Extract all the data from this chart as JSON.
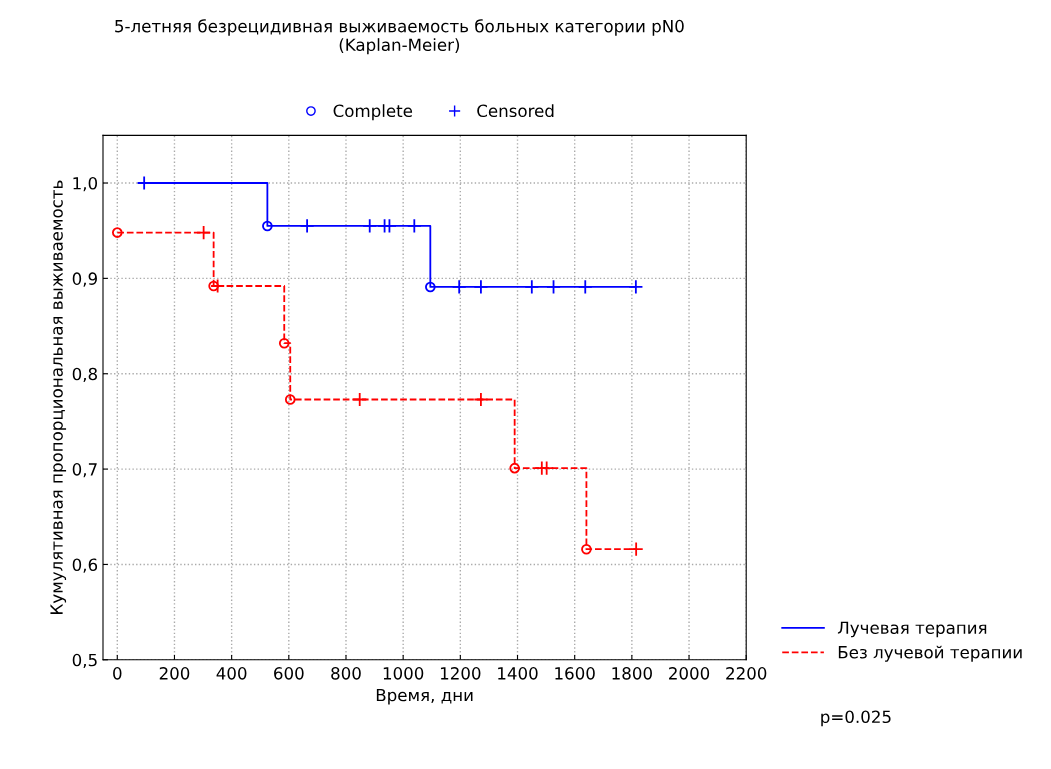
{
  "chart_data": {
    "type": "step",
    "title": "5-летняя безрецидивная выживаемость больных категории pN0\n(Kaplan-Meier)",
    "xlabel": "Время, дни",
    "ylabel": "Кумулятивная пропорциональная выживаемость",
    "xlim": [
      -50,
      2200
    ],
    "xticks": [
      0,
      200,
      400,
      600,
      800,
      1000,
      1200,
      1400,
      1600,
      1800,
      2000,
      2200
    ],
    "ylim": [
      0.5,
      1.05
    ],
    "yticks": [
      {
        "value": 0.5,
        "label": "0,5"
      },
      {
        "value": 0.6,
        "label": "0,6"
      },
      {
        "value": 0.7,
        "label": "0,7"
      },
      {
        "value": 0.8,
        "label": "0,8"
      },
      {
        "value": 0.9,
        "label": "0,9"
      },
      {
        "value": 1.0,
        "label": "1,0"
      }
    ],
    "grid": true,
    "legend": "right",
    "annotations": [
      "p=0.025"
    ],
    "series": [
      {
        "name": "Лучевая терапия",
        "color": "#0000ff",
        "line_style": "solid",
        "x": [
          94,
          525,
          1095,
          1814
        ],
        "values": [
          1.0,
          0.955,
          0.891,
          0.891
        ]
      },
      {
        "name": "Без лучевой терапии",
        "color": "#ff0000",
        "line_style": "dashed",
        "x": [
          0,
          337,
          584,
          605,
          1390,
          1641,
          1815
        ],
        "values": [
          0.948,
          0.892,
          0.832,
          0.773,
          0.701,
          0.616,
          0.616
        ]
      },
      {
        "name": "Complete",
        "type": "scatter",
        "marker": "circle",
        "color": "#0000ff",
        "x": [
          525,
          1095,
          0,
          337,
          584,
          605,
          1390,
          1641
        ],
        "values": [
          0.955,
          0.891,
          0.948,
          0.892,
          0.832,
          0.773,
          0.701,
          0.616
        ],
        "colors": [
          "#0000ff",
          "#0000ff",
          "#ff0000",
          "#ff0000",
          "#ff0000",
          "#ff0000",
          "#ff0000",
          "#ff0000"
        ]
      },
      {
        "name": "Censored",
        "type": "scatter",
        "marker": "cross",
        "color": "#0000ff",
        "x": [
          94,
          664,
          883,
          935,
          952,
          1039,
          1196,
          1272,
          1450,
          1526,
          1637,
          1814,
          302,
          351,
          848,
          1272,
          1485,
          1502,
          1815
        ],
        "values": [
          1.0,
          0.955,
          0.955,
          0.955,
          0.955,
          0.955,
          0.891,
          0.891,
          0.891,
          0.891,
          0.891,
          0.891,
          0.948,
          0.892,
          0.773,
          0.773,
          0.701,
          0.701,
          0.616
        ],
        "colors": [
          "#0000ff",
          "#0000ff",
          "#0000ff",
          "#0000ff",
          "#0000ff",
          "#0000ff",
          "#0000ff",
          "#0000ff",
          "#0000ff",
          "#0000ff",
          "#0000ff",
          "#0000ff",
          "#ff0000",
          "#ff0000",
          "#ff0000",
          "#ff0000",
          "#ff0000",
          "#ff0000",
          "#ff0000"
        ]
      }
    ]
  }
}
